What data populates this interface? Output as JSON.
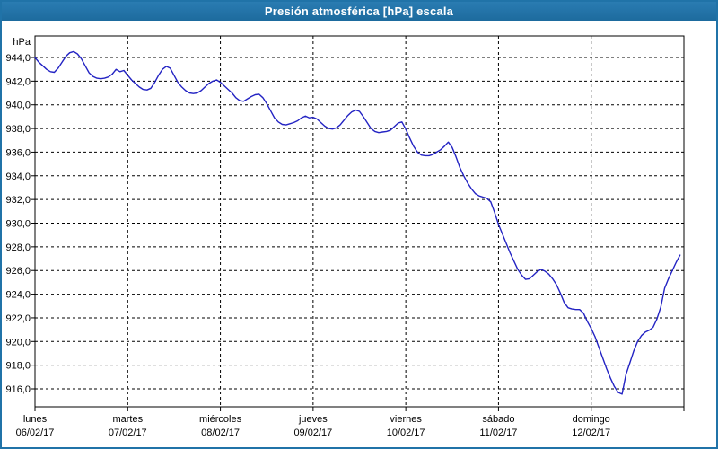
{
  "window": {
    "title": "Presión atmosférica [hPa] escala"
  },
  "colors": {
    "titlebar": "#2073A8",
    "window_border": "#2073A8",
    "line": "#2323C3",
    "grid": "#000000",
    "background": "#FFFFFF",
    "text": "#000000"
  },
  "chart_data": {
    "type": "line",
    "title": "Presión atmosférica [hPa] escala",
    "unit_label": "hPa",
    "grid": "dashed",
    "legend": "none",
    "y_axis": {
      "label": "hPa",
      "min": 914.5,
      "max": 945.8,
      "tick_start": 916,
      "tick_end": 944,
      "tick_step": 2,
      "decimals": 1,
      "decimal_separator": ","
    },
    "x_axis": {
      "hours_per_day": 24,
      "total_hours": 168,
      "days": [
        {
          "name": "lunes",
          "date": "06/02/17"
        },
        {
          "name": "martes",
          "date": "07/02/17"
        },
        {
          "name": "miércoles",
          "date": "08/02/17"
        },
        {
          "name": "jueves",
          "date": "09/02/17"
        },
        {
          "name": "viernes",
          "date": "10/02/17"
        },
        {
          "name": "sábado",
          "date": "11/02/17"
        },
        {
          "name": "domingo",
          "date": "12/02/17"
        }
      ]
    },
    "series": [
      {
        "unit": "hPa",
        "start_hour": 0,
        "hour_step": 1,
        "values": [
          944.0,
          943.6,
          943.3,
          943.0,
          942.8,
          942.75,
          943.1,
          943.6,
          944.1,
          944.4,
          944.5,
          944.3,
          943.9,
          943.3,
          942.7,
          942.4,
          942.25,
          942.2,
          942.25,
          942.35,
          942.6,
          943.0,
          942.8,
          942.9,
          942.5,
          942.1,
          941.8,
          941.5,
          941.3,
          941.25,
          941.4,
          941.9,
          942.5,
          943.0,
          943.25,
          943.1,
          942.5,
          941.9,
          941.5,
          941.2,
          941.0,
          940.95,
          941.0,
          941.2,
          941.5,
          941.8,
          942.0,
          942.1,
          941.9,
          941.6,
          941.3,
          941.0,
          940.6,
          940.35,
          940.3,
          940.5,
          940.7,
          940.85,
          940.9,
          940.6,
          940.1,
          939.5,
          938.9,
          938.55,
          938.35,
          938.3,
          938.4,
          938.5,
          938.65,
          938.9,
          939.05,
          938.9,
          938.95,
          938.8,
          938.5,
          938.2,
          938.0,
          937.95,
          938.05,
          938.3,
          938.7,
          939.1,
          939.4,
          939.55,
          939.45,
          939.0,
          938.5,
          938.0,
          937.75,
          937.65,
          937.7,
          937.75,
          937.85,
          938.15,
          938.45,
          938.55,
          937.95,
          937.2,
          936.5,
          936.0,
          935.75,
          935.7,
          935.7,
          935.8,
          936.0,
          936.2,
          936.5,
          936.85,
          936.4,
          935.6,
          934.7,
          934.0,
          933.4,
          932.9,
          932.5,
          932.3,
          932.2,
          932.1,
          931.8,
          930.9,
          929.9,
          929.1,
          928.3,
          927.5,
          926.8,
          926.1,
          925.6,
          925.25,
          925.3,
          925.6,
          925.9,
          926.1,
          925.95,
          925.7,
          925.3,
          924.8,
          924.1,
          923.3,
          922.85,
          922.75,
          922.7,
          922.7,
          922.4,
          921.7,
          921.1,
          920.4,
          919.5,
          918.6,
          917.7,
          916.9,
          916.2,
          915.7,
          915.55,
          917.2,
          918.2,
          919.2,
          920.0,
          920.5,
          920.8,
          920.95,
          921.2,
          921.9,
          922.9,
          924.5,
          925.3,
          926.0,
          926.7,
          927.3
        ]
      }
    ]
  }
}
